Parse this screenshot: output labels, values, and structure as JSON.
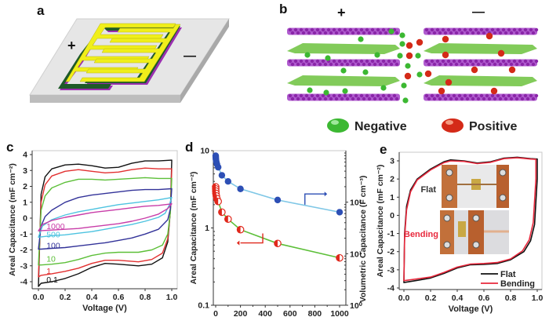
{
  "panels": {
    "a": {
      "label": "a",
      "plus": "+",
      "minus": "—",
      "description": "interdigitated micro-supercapacitor electrode on substrate"
    },
    "b": {
      "label": "b",
      "plus": "+",
      "minus": "—",
      "legend": [
        {
          "name": "Negative",
          "color": "#3cb832"
        },
        {
          "name": "Positive",
          "color": "#e0281c"
        }
      ]
    },
    "c": {
      "label": "c"
    },
    "d": {
      "label": "d"
    },
    "e": {
      "label": "e"
    }
  },
  "chart_data": [
    {
      "id": "c",
      "type": "line",
      "xlabel": "Voltage (V)",
      "ylabel": "Areal Capacitance (mF cm⁻²)",
      "xlim": [
        0,
        1.0
      ],
      "ylim": [
        -4.5,
        4.2
      ],
      "xticks": [
        "0.0",
        "0.2",
        "0.4",
        "0.6",
        "0.8",
        "1.0"
      ],
      "yticks": [
        "4",
        "3",
        "2",
        "1",
        "0",
        "-1",
        "-2",
        "-3",
        "-4"
      ],
      "series": [
        {
          "name": "0.1",
          "color": "#111111",
          "upper": [
            [
              0,
              -4.3
            ],
            [
              0.02,
              1.5
            ],
            [
              0.05,
              2.6
            ],
            [
              0.1,
              3.1
            ],
            [
              0.2,
              3.35
            ],
            [
              0.3,
              3.4
            ],
            [
              0.4,
              3.3
            ],
            [
              0.5,
              3.15
            ],
            [
              0.6,
              3.2
            ],
            [
              0.7,
              3.45
            ],
            [
              0.8,
              3.6
            ],
            [
              0.9,
              3.6
            ],
            [
              1.0,
              3.65
            ]
          ],
          "lower": [
            [
              1.0,
              3.65
            ],
            [
              0.99,
              0.5
            ],
            [
              0.97,
              -1.5
            ],
            [
              0.93,
              -2.5
            ],
            [
              0.85,
              -2.9
            ],
            [
              0.75,
              -3.0
            ],
            [
              0.6,
              -2.9
            ],
            [
              0.5,
              -2.85
            ],
            [
              0.4,
              -3.1
            ],
            [
              0.3,
              -3.5
            ],
            [
              0.2,
              -3.8
            ],
            [
              0.1,
              -4.0
            ],
            [
              0.02,
              -4.1
            ],
            [
              0,
              -4.3
            ]
          ]
        },
        {
          "name": "1",
          "color": "#e23030",
          "upper": [
            [
              0,
              -3.7
            ],
            [
              0.02,
              1.0
            ],
            [
              0.05,
              2.1
            ],
            [
              0.1,
              2.65
            ],
            [
              0.2,
              2.95
            ],
            [
              0.3,
              3.05
            ],
            [
              0.4,
              2.95
            ],
            [
              0.5,
              2.85
            ],
            [
              0.6,
              2.9
            ],
            [
              0.7,
              3.05
            ],
            [
              0.8,
              3.15
            ],
            [
              0.9,
              3.1
            ],
            [
              1.0,
              3.1
            ]
          ],
          "lower": [
            [
              1.0,
              3.1
            ],
            [
              0.99,
              0.5
            ],
            [
              0.97,
              -1.3
            ],
            [
              0.93,
              -2.2
            ],
            [
              0.85,
              -2.6
            ],
            [
              0.75,
              -2.75
            ],
            [
              0.6,
              -2.65
            ],
            [
              0.5,
              -2.65
            ],
            [
              0.4,
              -2.85
            ],
            [
              0.3,
              -3.15
            ],
            [
              0.2,
              -3.35
            ],
            [
              0.1,
              -3.5
            ],
            [
              0.02,
              -3.6
            ],
            [
              0,
              -3.7
            ]
          ]
        },
        {
          "name": "10",
          "color": "#5cbf38",
          "upper": [
            [
              0,
              -2.95
            ],
            [
              0.02,
              0.5
            ],
            [
              0.05,
              1.4
            ],
            [
              0.1,
              1.9
            ],
            [
              0.2,
              2.25
            ],
            [
              0.3,
              2.45
            ],
            [
              0.4,
              2.45
            ],
            [
              0.5,
              2.4
            ],
            [
              0.6,
              2.45
            ],
            [
              0.7,
              2.5
            ],
            [
              0.8,
              2.55
            ],
            [
              0.9,
              2.5
            ],
            [
              1.0,
              2.5
            ]
          ],
          "lower": [
            [
              1.0,
              2.5
            ],
            [
              0.99,
              0.4
            ],
            [
              0.97,
              -1.0
            ],
            [
              0.93,
              -1.7
            ],
            [
              0.85,
              -2.0
            ],
            [
              0.75,
              -2.15
            ],
            [
              0.6,
              -2.15
            ],
            [
              0.5,
              -2.2
            ],
            [
              0.4,
              -2.35
            ],
            [
              0.3,
              -2.6
            ],
            [
              0.2,
              -2.8
            ],
            [
              0.1,
              -2.9
            ],
            [
              0.02,
              -2.95
            ],
            [
              0,
              -2.95
            ]
          ]
        },
        {
          "name": "100",
          "color": "#333399",
          "upper": [
            [
              0,
              -1.95
            ],
            [
              0.02,
              -0.5
            ],
            [
              0.05,
              0.1
            ],
            [
              0.1,
              0.5
            ],
            [
              0.2,
              1.0
            ],
            [
              0.3,
              1.3
            ],
            [
              0.4,
              1.45
            ],
            [
              0.5,
              1.55
            ],
            [
              0.6,
              1.65
            ],
            [
              0.7,
              1.75
            ],
            [
              0.8,
              1.8
            ],
            [
              0.9,
              1.8
            ],
            [
              1.0,
              1.85
            ]
          ],
          "lower": [
            [
              1.0,
              1.85
            ],
            [
              0.99,
              0.6
            ],
            [
              0.97,
              -0.1
            ],
            [
              0.9,
              -0.7
            ],
            [
              0.8,
              -1.0
            ],
            [
              0.7,
              -1.25
            ],
            [
              0.6,
              -1.4
            ],
            [
              0.5,
              -1.55
            ],
            [
              0.4,
              -1.65
            ],
            [
              0.3,
              -1.75
            ],
            [
              0.2,
              -1.85
            ],
            [
              0.1,
              -1.9
            ],
            [
              0.02,
              -1.95
            ],
            [
              0,
              -1.95
            ]
          ]
        },
        {
          "name": "500",
          "color": "#4dc3e0",
          "upper": [
            [
              0,
              -1.2
            ],
            [
              0.03,
              -0.5
            ],
            [
              0.1,
              -0.1
            ],
            [
              0.2,
              0.2
            ],
            [
              0.3,
              0.4
            ],
            [
              0.4,
              0.55
            ],
            [
              0.5,
              0.7
            ],
            [
              0.6,
              0.85
            ],
            [
              0.7,
              0.95
            ],
            [
              0.8,
              1.05
            ],
            [
              0.9,
              1.15
            ],
            [
              1.0,
              1.3
            ]
          ],
          "lower": [
            [
              1.0,
              1.3
            ],
            [
              0.98,
              0.8
            ],
            [
              0.95,
              0.3
            ],
            [
              0.9,
              0.05
            ],
            [
              0.8,
              -0.2
            ],
            [
              0.7,
              -0.4
            ],
            [
              0.6,
              -0.55
            ],
            [
              0.5,
              -0.7
            ],
            [
              0.4,
              -0.85
            ],
            [
              0.3,
              -0.95
            ],
            [
              0.2,
              -1.05
            ],
            [
              0.1,
              -1.1
            ],
            [
              0,
              -1.2
            ]
          ]
        },
        {
          "name": "1000",
          "color": "#c83ca8",
          "upper": [
            [
              0,
              -0.8
            ],
            [
              0.03,
              -0.4
            ],
            [
              0.1,
              -0.15
            ],
            [
              0.2,
              0.05
            ],
            [
              0.3,
              0.2
            ],
            [
              0.4,
              0.35
            ],
            [
              0.5,
              0.45
            ],
            [
              0.6,
              0.55
            ],
            [
              0.7,
              0.65
            ],
            [
              0.8,
              0.75
            ],
            [
              0.9,
              0.8
            ],
            [
              1.0,
              0.9
            ]
          ],
          "lower": [
            [
              1.0,
              0.9
            ],
            [
              0.97,
              0.6
            ],
            [
              0.9,
              0.25
            ],
            [
              0.8,
              0.0
            ],
            [
              0.7,
              -0.2
            ],
            [
              0.6,
              -0.35
            ],
            [
              0.5,
              -0.45
            ],
            [
              0.4,
              -0.55
            ],
            [
              0.3,
              -0.65
            ],
            [
              0.2,
              -0.7
            ],
            [
              0.1,
              -0.75
            ],
            [
              0,
              -0.8
            ]
          ]
        }
      ],
      "annotations": [
        "1000",
        "500",
        "100",
        "10",
        "1",
        "0.1"
      ]
    },
    {
      "id": "d",
      "type": "scatter",
      "xlabel": "Scan Rate (V s⁻¹)",
      "ylabel_left": "Areal Capacitance (mF cm⁻²)",
      "ylabel_right": "Volumetric Capacitance (F cm⁻³)",
      "xlim": [
        -20,
        1050
      ],
      "ylim_left": [
        0.1,
        10
      ],
      "ylim_right": [
        1,
        1000
      ],
      "yscale": "log",
      "xticks": [
        "0",
        "200",
        "400",
        "600",
        "800",
        "1000"
      ],
      "yticks_left": [
        "10",
        "1",
        "0.1"
      ],
      "yticks_right": [
        "10²",
        "10¹",
        "10⁰"
      ],
      "series": [
        {
          "name": "Volumetric",
          "axis": "right",
          "marker_color": "#2d4fb5",
          "line_color": "#7fc7e6",
          "x": [
            0.1,
            0.5,
            1,
            2,
            5,
            10,
            20,
            50,
            100,
            200,
            500,
            1000
          ],
          "y_left_equiv": [
            8.6,
            8.3,
            8.0,
            7.7,
            7.2,
            6.7,
            6.1,
            4.8,
            4.0,
            3.2,
            2.3,
            1.6
          ]
        },
        {
          "name": "Areal",
          "axis": "left",
          "marker_color": "#e0281c",
          "line_color": "#5cbf38",
          "x": [
            0.1,
            0.5,
            1,
            2,
            5,
            10,
            20,
            50,
            100,
            200,
            500,
            1000
          ],
          "y": [
            3.4,
            3.2,
            3.0,
            2.8,
            2.6,
            2.4,
            2.2,
            1.6,
            1.3,
            0.95,
            0.63,
            0.41
          ]
        }
      ],
      "annotations": [
        "arrow pointing right to volumetric axis",
        "arrow pointing left to areal axis"
      ]
    },
    {
      "id": "e",
      "type": "line",
      "xlabel": "Voltage (V)",
      "ylabel": "Areal Capacitance (mF cm⁻²)",
      "xlim": [
        0,
        1.0
      ],
      "ylim": [
        -4,
        3.4
      ],
      "xticks": [
        "0.0",
        "0.2",
        "0.4",
        "0.6",
        "0.8",
        "1.0"
      ],
      "yticks": [
        "3",
        "2",
        "1",
        "0",
        "-1",
        "-2",
        "-3",
        "-4"
      ],
      "legend": {
        "position": "bottom-right",
        "entries": [
          "Flat",
          "Bending"
        ]
      },
      "inset_labels": [
        "Flat",
        "Bending"
      ],
      "series": [
        {
          "name": "Flat",
          "color": "#111111",
          "points": [
            [
              0,
              -3.7
            ],
            [
              0.005,
              -1.0
            ],
            [
              0.02,
              0.5
            ],
            [
              0.05,
              1.4
            ],
            [
              0.1,
              2.0
            ],
            [
              0.2,
              2.55
            ],
            [
              0.3,
              2.95
            ],
            [
              0.35,
              3.05
            ],
            [
              0.45,
              3.0
            ],
            [
              0.55,
              2.88
            ],
            [
              0.65,
              2.95
            ],
            [
              0.75,
              3.15
            ],
            [
              0.85,
              3.2
            ],
            [
              0.95,
              3.12
            ],
            [
              1.0,
              3.1
            ],
            [
              1.0,
              2.0
            ],
            [
              0.98,
              -0.5
            ],
            [
              0.95,
              -1.4
            ],
            [
              0.9,
              -2.0
            ],
            [
              0.8,
              -2.45
            ],
            [
              0.7,
              -2.65
            ],
            [
              0.6,
              -2.7
            ],
            [
              0.5,
              -2.72
            ],
            [
              0.4,
              -2.9
            ],
            [
              0.3,
              -3.2
            ],
            [
              0.2,
              -3.45
            ],
            [
              0.1,
              -3.58
            ],
            [
              0,
              -3.7
            ]
          ]
        },
        {
          "name": "Bending",
          "color": "#e8283c",
          "points": [
            [
              0,
              -3.6
            ],
            [
              0.005,
              -1.2
            ],
            [
              0.02,
              0.3
            ],
            [
              0.05,
              1.3
            ],
            [
              0.1,
              1.95
            ],
            [
              0.2,
              2.5
            ],
            [
              0.3,
              2.9
            ],
            [
              0.35,
              3.0
            ],
            [
              0.45,
              2.97
            ],
            [
              0.55,
              2.85
            ],
            [
              0.65,
              2.92
            ],
            [
              0.75,
              3.12
            ],
            [
              0.85,
              3.17
            ],
            [
              0.95,
              3.1
            ],
            [
              0.99,
              3.08
            ],
            [
              0.99,
              2.0
            ],
            [
              0.97,
              -0.4
            ],
            [
              0.94,
              -1.35
            ],
            [
              0.89,
              -1.95
            ],
            [
              0.8,
              -2.4
            ],
            [
              0.7,
              -2.6
            ],
            [
              0.6,
              -2.65
            ],
            [
              0.5,
              -2.68
            ],
            [
              0.4,
              -2.85
            ],
            [
              0.3,
              -3.15
            ],
            [
              0.2,
              -3.4
            ],
            [
              0.1,
              -3.5
            ],
            [
              0,
              -3.6
            ]
          ]
        }
      ]
    }
  ]
}
